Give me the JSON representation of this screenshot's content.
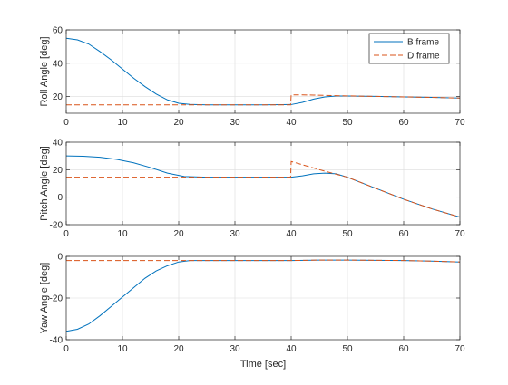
{
  "figure": {
    "xlabel": "Time [sec]",
    "colors": {
      "b_frame": "#0072BD",
      "d_frame": "#D95319",
      "grid": "#dcdcdc",
      "axis": "#262626"
    }
  },
  "chart_data": [
    {
      "type": "line",
      "ylabel": "Roll Angle [deg]",
      "xlim": [
        0,
        70
      ],
      "ylim": [
        10,
        60
      ],
      "xticks": [
        0,
        10,
        20,
        30,
        40,
        50,
        60,
        70
      ],
      "yticks": [
        20,
        40,
        60
      ],
      "grid": true,
      "legend": {
        "position": "top-right",
        "entries": [
          "B frame",
          "D frame"
        ]
      },
      "series": [
        {
          "name": "B frame",
          "style": "solid",
          "color": "#0072BD",
          "x": [
            0,
            2,
            4,
            6,
            8,
            10,
            12,
            14,
            16,
            18,
            20,
            22,
            25,
            30,
            35,
            40,
            42,
            44,
            46,
            48,
            50,
            55,
            60,
            65,
            70
          ],
          "y": [
            55,
            54,
            51.5,
            47,
            42,
            36.5,
            31,
            26,
            21.5,
            18,
            16,
            15.3,
            15,
            15,
            15,
            15.2,
            16.5,
            18.5,
            19.8,
            20.3,
            20.3,
            20.1,
            19.8,
            19.5,
            19.1
          ]
        },
        {
          "name": "D frame",
          "style": "dashed",
          "color": "#D95319",
          "x": [
            0,
            10,
            20,
            30,
            39.9,
            40,
            42,
            44,
            46,
            48,
            50,
            55,
            60,
            65,
            70
          ],
          "y": [
            15,
            15,
            15,
            15,
            15,
            21,
            21,
            20.9,
            20.7,
            20.5,
            20.4,
            20.1,
            19.8,
            19.5,
            19.1
          ]
        }
      ]
    },
    {
      "type": "line",
      "ylabel": "Pitch Angle [deg]",
      "xlim": [
        0,
        70
      ],
      "ylim": [
        -20,
        40
      ],
      "xticks": [
        0,
        10,
        20,
        30,
        40,
        50,
        60,
        70
      ],
      "yticks": [
        -20,
        0,
        20,
        40
      ],
      "grid": true,
      "series": [
        {
          "name": "B frame",
          "style": "solid",
          "color": "#0072BD",
          "x": [
            0,
            3,
            6,
            9,
            12,
            15,
            18,
            21,
            25,
            30,
            35,
            40,
            42,
            44,
            46,
            48,
            50,
            55,
            60,
            65,
            70
          ],
          "y": [
            30,
            29.8,
            29,
            27.5,
            25,
            21.5,
            17.5,
            15,
            14.5,
            14.5,
            14.5,
            14.5,
            15.5,
            17,
            17.5,
            17,
            14.5,
            6.5,
            -1.5,
            -8.5,
            -14.5
          ]
        },
        {
          "name": "D frame",
          "style": "dashed",
          "color": "#D95319",
          "x": [
            0,
            10,
            20,
            30,
            39.9,
            40,
            45,
            50,
            55,
            60,
            65,
            70
          ],
          "y": [
            14.5,
            14.5,
            14.5,
            14.5,
            14.5,
            26,
            20,
            14.5,
            6.5,
            -1.5,
            -8.5,
            -14.5
          ]
        }
      ]
    },
    {
      "type": "line",
      "ylabel": "Yaw Angle [deg]",
      "xlabel": "Time [sec]",
      "xlim": [
        0,
        70
      ],
      "ylim": [
        -40,
        0
      ],
      "xticks": [
        0,
        10,
        20,
        30,
        40,
        50,
        60,
        70
      ],
      "yticks": [
        -40,
        -20,
        0
      ],
      "grid": true,
      "series": [
        {
          "name": "B frame",
          "style": "solid",
          "color": "#0072BD",
          "x": [
            0,
            2,
            4,
            6,
            8,
            10,
            12,
            14,
            16,
            18,
            20,
            22,
            25,
            30,
            35,
            40,
            45,
            50,
            55,
            60,
            65,
            70
          ],
          "y": [
            -36,
            -35,
            -32.5,
            -28.5,
            -24,
            -19.5,
            -15,
            -10.5,
            -7,
            -4.5,
            -2.7,
            -2,
            -2,
            -2,
            -2,
            -2,
            -1.8,
            -1.8,
            -1.9,
            -2,
            -2.3,
            -2.7
          ]
        },
        {
          "name": "D frame",
          "style": "dashed",
          "color": "#D95319",
          "x": [
            0,
            10,
            20,
            30,
            40,
            45,
            50,
            55,
            60,
            65,
            70
          ],
          "y": [
            -2,
            -2,
            -2,
            -2,
            -2,
            -1.8,
            -1.8,
            -1.9,
            -2,
            -2.3,
            -2.7
          ]
        }
      ]
    }
  ]
}
